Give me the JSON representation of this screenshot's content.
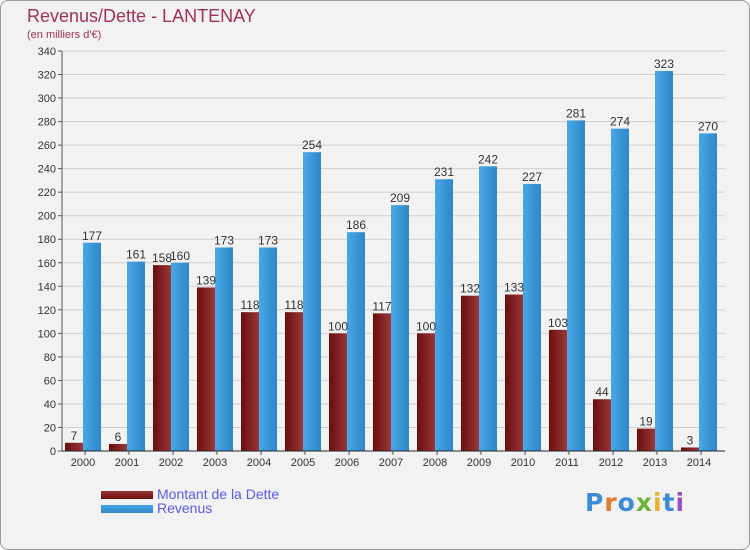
{
  "title": "Revenus/Dette - LANTENAY",
  "subtitle": "(en milliers d'€)",
  "brand": {
    "text": "Proxiti",
    "letter_colors": [
      "#3c8bd6",
      "#e07a2a",
      "#3c8bd6",
      "#6db33f",
      "#e8b22a",
      "#3c8bd6",
      "#9a4fc6"
    ]
  },
  "colors": {
    "debt": "#6b0d0d",
    "debt_light": "#9a3838",
    "revenue": "#49a8e8",
    "revenue_dark": "#2f86c8",
    "title": "#a2305f",
    "legend_text": "#5a5ae6"
  },
  "chart_data": {
    "type": "bar",
    "title": "Revenus/Dette - LANTENAY",
    "subtitle": "(en milliers d'€)",
    "categories": [
      "2000",
      "2001",
      "2002",
      "2003",
      "2004",
      "2005",
      "2006",
      "2007",
      "2008",
      "2009",
      "2010",
      "2011",
      "2012",
      "2013",
      "2014"
    ],
    "series": [
      {
        "name": "Montant de la Dette",
        "values": [
          7,
          6,
          158,
          139,
          118,
          118,
          100,
          117,
          100,
          132,
          133,
          103,
          44,
          19,
          3
        ]
      },
      {
        "name": "Revenus",
        "values": [
          177,
          161,
          160,
          173,
          173,
          254,
          186,
          209,
          231,
          242,
          227,
          281,
          274,
          323,
          270
        ]
      }
    ],
    "ylim": [
      0,
      340
    ],
    "yticks": [
      0,
      20,
      40,
      60,
      80,
      100,
      120,
      140,
      160,
      180,
      200,
      220,
      240,
      260,
      280,
      300,
      320,
      340
    ],
    "grid": true,
    "legend_position": "bottom-left",
    "xlabel": "",
    "ylabel": ""
  }
}
